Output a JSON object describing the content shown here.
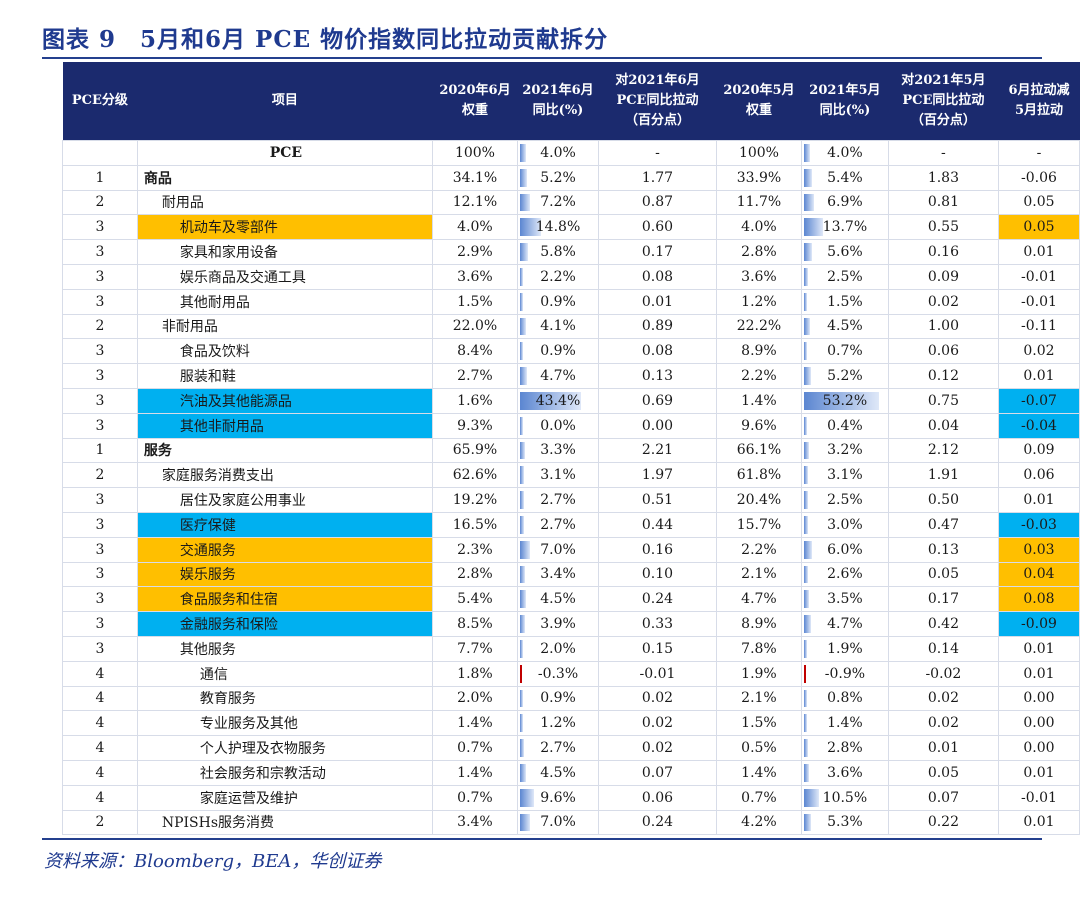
{
  "title": "图表 9　5月和6月 PCE 物价指数同比拉动贡献拆分",
  "source": "资料来源：Bloomberg，BEA，华创证券",
  "headers": [
    "PCE分级",
    "项目",
    "2020年6月\n权重",
    "2021年6月\n同比(%)",
    "对2021年6月\nPCE同比拉动\n（百分点）",
    "2020年5月\n权重",
    "2021年5月\n同比(%)",
    "对2021年5月\nPCE同比拉动\n（百分点）",
    "6月拉动减\n5月拉动"
  ],
  "colors": {
    "header_bg": "#1b2a6e",
    "highlight_orange": "#ffbf00",
    "highlight_blue": "#00b0f0",
    "title": "#1f3a8f",
    "databar": "#5b86d1",
    "databar_negative": "#c00000"
  },
  "rows": [
    {
      "level": "",
      "item": "PCE",
      "indent": 0,
      "center": true,
      "bold": true,
      "w_jun": "100%",
      "yoy_jun": "4.0%",
      "yoy_jun_v": 4.0,
      "pull_jun": "-",
      "w_may": "100%",
      "yoy_may": "4.0%",
      "yoy_may_v": 4.0,
      "pull_may": "-",
      "diff": "-",
      "item_hl": "",
      "diff_hl": ""
    },
    {
      "level": "1",
      "item": "商品",
      "indent": 0,
      "bold": true,
      "w_jun": "34.1%",
      "yoy_jun": "5.2%",
      "yoy_jun_v": 5.2,
      "pull_jun": "1.77",
      "w_may": "33.9%",
      "yoy_may": "5.4%",
      "yoy_may_v": 5.4,
      "pull_may": "1.83",
      "diff": "-0.06",
      "item_hl": "",
      "diff_hl": ""
    },
    {
      "level": "2",
      "item": "耐用品",
      "indent": 1,
      "w_jun": "12.1%",
      "yoy_jun": "7.2%",
      "yoy_jun_v": 7.2,
      "pull_jun": "0.87",
      "w_may": "11.7%",
      "yoy_may": "6.9%",
      "yoy_may_v": 6.9,
      "pull_may": "0.81",
      "diff": "0.05",
      "item_hl": "",
      "diff_hl": ""
    },
    {
      "level": "3",
      "item": "机动车及零部件",
      "indent": 2,
      "w_jun": "4.0%",
      "yoy_jun": "14.8%",
      "yoy_jun_v": 14.8,
      "pull_jun": "0.60",
      "w_may": "4.0%",
      "yoy_may": "13.7%",
      "yoy_may_v": 13.7,
      "pull_may": "0.55",
      "diff": "0.05",
      "item_hl": "orange",
      "diff_hl": "orange"
    },
    {
      "level": "3",
      "item": "家具和家用设备",
      "indent": 2,
      "w_jun": "2.9%",
      "yoy_jun": "5.8%",
      "yoy_jun_v": 5.8,
      "pull_jun": "0.17",
      "w_may": "2.8%",
      "yoy_may": "5.6%",
      "yoy_may_v": 5.6,
      "pull_may": "0.16",
      "diff": "0.01",
      "item_hl": "",
      "diff_hl": ""
    },
    {
      "level": "3",
      "item": "娱乐商品及交通工具",
      "indent": 2,
      "w_jun": "3.6%",
      "yoy_jun": "2.2%",
      "yoy_jun_v": 2.2,
      "pull_jun": "0.08",
      "w_may": "3.6%",
      "yoy_may": "2.5%",
      "yoy_may_v": 2.5,
      "pull_may": "0.09",
      "diff": "-0.01",
      "item_hl": "",
      "diff_hl": ""
    },
    {
      "level": "3",
      "item": "其他耐用品",
      "indent": 2,
      "w_jun": "1.5%",
      "yoy_jun": "0.9%",
      "yoy_jun_v": 0.9,
      "pull_jun": "0.01",
      "w_may": "1.2%",
      "yoy_may": "1.5%",
      "yoy_may_v": 1.5,
      "pull_may": "0.02",
      "diff": "-0.01",
      "item_hl": "",
      "diff_hl": ""
    },
    {
      "level": "2",
      "item": "非耐用品",
      "indent": 1,
      "w_jun": "22.0%",
      "yoy_jun": "4.1%",
      "yoy_jun_v": 4.1,
      "pull_jun": "0.89",
      "w_may": "22.2%",
      "yoy_may": "4.5%",
      "yoy_may_v": 4.5,
      "pull_may": "1.00",
      "diff": "-0.11",
      "item_hl": "",
      "diff_hl": ""
    },
    {
      "level": "3",
      "item": "食品及饮料",
      "indent": 2,
      "w_jun": "8.4%",
      "yoy_jun": "0.9%",
      "yoy_jun_v": 0.9,
      "pull_jun": "0.08",
      "w_may": "8.9%",
      "yoy_may": "0.7%",
      "yoy_may_v": 0.7,
      "pull_may": "0.06",
      "diff": "0.02",
      "item_hl": "",
      "diff_hl": ""
    },
    {
      "level": "3",
      "item": "服装和鞋",
      "indent": 2,
      "w_jun": "2.7%",
      "yoy_jun": "4.7%",
      "yoy_jun_v": 4.7,
      "pull_jun": "0.13",
      "w_may": "2.2%",
      "yoy_may": "5.2%",
      "yoy_may_v": 5.2,
      "pull_may": "0.12",
      "diff": "0.01",
      "item_hl": "",
      "diff_hl": ""
    },
    {
      "level": "3",
      "item": "汽油及其他能源品",
      "indent": 2,
      "w_jun": "1.6%",
      "yoy_jun": "43.4%",
      "yoy_jun_v": 43.4,
      "pull_jun": "0.69",
      "w_may": "1.4%",
      "yoy_may": "53.2%",
      "yoy_may_v": 53.2,
      "pull_may": "0.75",
      "diff": "-0.07",
      "item_hl": "blue",
      "diff_hl": "blue"
    },
    {
      "level": "3",
      "item": "其他非耐用品",
      "indent": 2,
      "w_jun": "9.3%",
      "yoy_jun": "0.0%",
      "yoy_jun_v": 0.0,
      "pull_jun": "0.00",
      "w_may": "9.6%",
      "yoy_may": "0.4%",
      "yoy_may_v": 0.4,
      "pull_may": "0.04",
      "diff": "-0.04",
      "item_hl": "blue",
      "diff_hl": "blue"
    },
    {
      "level": "1",
      "item": "服务",
      "indent": 0,
      "bold": true,
      "w_jun": "65.9%",
      "yoy_jun": "3.3%",
      "yoy_jun_v": 3.3,
      "pull_jun": "2.21",
      "w_may": "66.1%",
      "yoy_may": "3.2%",
      "yoy_may_v": 3.2,
      "pull_may": "2.12",
      "diff": "0.09",
      "item_hl": "",
      "diff_hl": ""
    },
    {
      "level": "2",
      "item": "家庭服务消费支出",
      "indent": 1,
      "w_jun": "62.6%",
      "yoy_jun": "3.1%",
      "yoy_jun_v": 3.1,
      "pull_jun": "1.97",
      "w_may": "61.8%",
      "yoy_may": "3.1%",
      "yoy_may_v": 3.1,
      "pull_may": "1.91",
      "diff": "0.06",
      "item_hl": "",
      "diff_hl": ""
    },
    {
      "level": "3",
      "item": "居住及家庭公用事业",
      "indent": 2,
      "w_jun": "19.2%",
      "yoy_jun": "2.7%",
      "yoy_jun_v": 2.7,
      "pull_jun": "0.51",
      "w_may": "20.4%",
      "yoy_may": "2.5%",
      "yoy_may_v": 2.5,
      "pull_may": "0.50",
      "diff": "0.01",
      "item_hl": "",
      "diff_hl": ""
    },
    {
      "level": "3",
      "item": "医疗保健",
      "indent": 2,
      "w_jun": "16.5%",
      "yoy_jun": "2.7%",
      "yoy_jun_v": 2.7,
      "pull_jun": "0.44",
      "w_may": "15.7%",
      "yoy_may": "3.0%",
      "yoy_may_v": 3.0,
      "pull_may": "0.47",
      "diff": "-0.03",
      "item_hl": "blue",
      "diff_hl": "blue"
    },
    {
      "level": "3",
      "item": "交通服务",
      "indent": 2,
      "w_jun": "2.3%",
      "yoy_jun": "7.0%",
      "yoy_jun_v": 7.0,
      "pull_jun": "0.16",
      "w_may": "2.2%",
      "yoy_may": "6.0%",
      "yoy_may_v": 6.0,
      "pull_may": "0.13",
      "diff": "0.03",
      "item_hl": "orange",
      "diff_hl": "orange"
    },
    {
      "level": "3",
      "item": "娱乐服务",
      "indent": 2,
      "w_jun": "2.8%",
      "yoy_jun": "3.4%",
      "yoy_jun_v": 3.4,
      "pull_jun": "0.10",
      "w_may": "2.1%",
      "yoy_may": "2.6%",
      "yoy_may_v": 2.6,
      "pull_may": "0.05",
      "diff": "0.04",
      "item_hl": "orange",
      "diff_hl": "orange"
    },
    {
      "level": "3",
      "item": "食品服务和住宿",
      "indent": 2,
      "w_jun": "5.4%",
      "yoy_jun": "4.5%",
      "yoy_jun_v": 4.5,
      "pull_jun": "0.24",
      "w_may": "4.7%",
      "yoy_may": "3.5%",
      "yoy_may_v": 3.5,
      "pull_may": "0.17",
      "diff": "0.08",
      "item_hl": "orange",
      "diff_hl": "orange"
    },
    {
      "level": "3",
      "item": "金融服务和保险",
      "indent": 2,
      "w_jun": "8.5%",
      "yoy_jun": "3.9%",
      "yoy_jun_v": 3.9,
      "pull_jun": "0.33",
      "w_may": "8.9%",
      "yoy_may": "4.7%",
      "yoy_may_v": 4.7,
      "pull_may": "0.42",
      "diff": "-0.09",
      "item_hl": "blue",
      "diff_hl": "blue"
    },
    {
      "level": "3",
      "item": "其他服务",
      "indent": 2,
      "w_jun": "7.7%",
      "yoy_jun": "2.0%",
      "yoy_jun_v": 2.0,
      "pull_jun": "0.15",
      "w_may": "7.8%",
      "yoy_may": "1.9%",
      "yoy_may_v": 1.9,
      "pull_may": "0.14",
      "diff": "0.01",
      "item_hl": "",
      "diff_hl": ""
    },
    {
      "level": "4",
      "item": "通信",
      "indent": 3,
      "w_jun": "1.8%",
      "yoy_jun": "-0.3%",
      "yoy_jun_v": -0.3,
      "pull_jun": "-0.01",
      "w_may": "1.9%",
      "yoy_may": "-0.9%",
      "yoy_may_v": -0.9,
      "pull_may": "-0.02",
      "diff": "0.01",
      "item_hl": "",
      "diff_hl": ""
    },
    {
      "level": "4",
      "item": "教育服务",
      "indent": 3,
      "w_jun": "2.0%",
      "yoy_jun": "0.9%",
      "yoy_jun_v": 0.9,
      "pull_jun": "0.02",
      "w_may": "2.1%",
      "yoy_may": "0.8%",
      "yoy_may_v": 0.8,
      "pull_may": "0.02",
      "diff": "0.00",
      "item_hl": "",
      "diff_hl": ""
    },
    {
      "level": "4",
      "item": "专业服务及其他",
      "indent": 3,
      "w_jun": "1.4%",
      "yoy_jun": "1.2%",
      "yoy_jun_v": 1.2,
      "pull_jun": "0.02",
      "w_may": "1.5%",
      "yoy_may": "1.4%",
      "yoy_may_v": 1.4,
      "pull_may": "0.02",
      "diff": "0.00",
      "item_hl": "",
      "diff_hl": ""
    },
    {
      "level": "4",
      "item": "个人护理及衣物服务",
      "indent": 3,
      "w_jun": "0.7%",
      "yoy_jun": "2.7%",
      "yoy_jun_v": 2.7,
      "pull_jun": "0.02",
      "w_may": "0.5%",
      "yoy_may": "2.8%",
      "yoy_may_v": 2.8,
      "pull_may": "0.01",
      "diff": "0.00",
      "item_hl": "",
      "diff_hl": ""
    },
    {
      "level": "4",
      "item": "社会服务和宗教活动",
      "indent": 3,
      "w_jun": "1.4%",
      "yoy_jun": "4.5%",
      "yoy_jun_v": 4.5,
      "pull_jun": "0.07",
      "w_may": "1.4%",
      "yoy_may": "3.6%",
      "yoy_may_v": 3.6,
      "pull_may": "0.05",
      "diff": "0.01",
      "item_hl": "",
      "diff_hl": ""
    },
    {
      "level": "4",
      "item": "家庭运营及维护",
      "indent": 3,
      "w_jun": "0.7%",
      "yoy_jun": "9.6%",
      "yoy_jun_v": 9.6,
      "pull_jun": "0.06",
      "w_may": "0.7%",
      "yoy_may": "10.5%",
      "yoy_may_v": 10.5,
      "pull_may": "0.07",
      "diff": "-0.01",
      "item_hl": "",
      "diff_hl": ""
    },
    {
      "level": "2",
      "item": "NPISHs服务消费",
      "indent": 1,
      "w_jun": "3.4%",
      "yoy_jun": "7.0%",
      "yoy_jun_v": 7.0,
      "pull_jun": "0.24",
      "w_may": "4.2%",
      "yoy_may": "5.3%",
      "yoy_may_v": 5.3,
      "pull_may": "0.22",
      "diff": "0.01",
      "item_hl": "",
      "diff_hl": ""
    }
  ]
}
